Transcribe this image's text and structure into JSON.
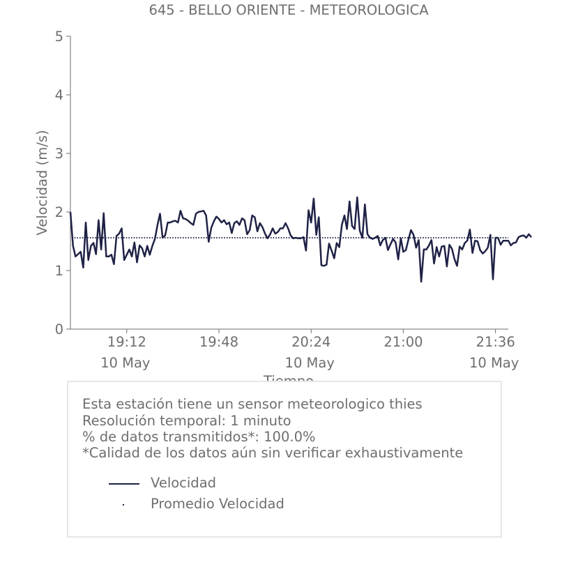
{
  "chart_data": {
    "type": "line",
    "title": "645 - BELLO ORIENTE - METEOROLOGICA",
    "xlabel": "Tiempo",
    "ylabel": "Velocidad (m/s)",
    "ylim": [
      0,
      5
    ],
    "yticks": [
      "0",
      "1",
      "2",
      "3",
      "4",
      "5"
    ],
    "xlim": [
      "18:50",
      "21:41"
    ],
    "xticks": [
      {
        "time": "19:12",
        "date": "10 May"
      },
      {
        "time": "19:48",
        "date": ""
      },
      {
        "time": "20:24",
        "date": "10 May"
      },
      {
        "time": "21:00",
        "date": ""
      },
      {
        "time": "21:36",
        "date": "10 May"
      }
    ],
    "grid": false,
    "colors": {
      "series": "#1f2246",
      "text": "#6e6e6e",
      "axis": "#6e6e6e",
      "box_border": "#e6e6e6"
    },
    "series": [
      {
        "name": "Velocidad",
        "start_time": "18:50",
        "interval_minutes": 1,
        "values": [
          2.0,
          1.42,
          1.24,
          1.28,
          1.32,
          1.05,
          1.82,
          1.18,
          1.42,
          1.47,
          1.28,
          1.86,
          1.36,
          1.98,
          1.24,
          1.24,
          1.27,
          1.11,
          1.59,
          1.63,
          1.72,
          1.18,
          1.27,
          1.36,
          1.24,
          1.48,
          1.14,
          1.43,
          1.38,
          1.24,
          1.42,
          1.27,
          1.42,
          1.54,
          1.78,
          1.97,
          1.56,
          1.6,
          1.82,
          1.82,
          1.84,
          1.85,
          1.82,
          2.02,
          1.89,
          1.88,
          1.85,
          1.81,
          1.78,
          1.97,
          2.0,
          2.01,
          2.02,
          1.94,
          1.49,
          1.73,
          1.84,
          1.92,
          1.88,
          1.82,
          1.86,
          1.79,
          1.82,
          1.64,
          1.81,
          1.84,
          1.78,
          1.89,
          1.86,
          1.62,
          1.69,
          1.94,
          1.91,
          1.67,
          1.81,
          1.74,
          1.63,
          1.55,
          1.62,
          1.72,
          1.63,
          1.66,
          1.72,
          1.72,
          1.81,
          1.72,
          1.6,
          1.55,
          1.56,
          1.55,
          1.55,
          1.57,
          1.34,
          2.03,
          1.82,
          2.23,
          1.61,
          1.91,
          1.09,
          1.08,
          1.1,
          1.46,
          1.34,
          1.21,
          1.47,
          1.4,
          1.78,
          1.94,
          1.71,
          2.18,
          1.76,
          1.71,
          2.25,
          1.68,
          1.56,
          2.13,
          1.62,
          1.56,
          1.54,
          1.56,
          1.59,
          1.43,
          1.52,
          1.56,
          1.35,
          1.45,
          1.54,
          1.48,
          1.19,
          1.55,
          1.32,
          1.35,
          1.53,
          1.69,
          1.61,
          1.39,
          1.52,
          0.81,
          1.36,
          1.36,
          1.43,
          1.52,
          1.12,
          1.4,
          1.24,
          1.41,
          1.42,
          1.07,
          1.44,
          1.37,
          1.19,
          1.08,
          1.41,
          1.36,
          1.47,
          1.51,
          1.7,
          1.3,
          1.51,
          1.5,
          1.35,
          1.29,
          1.33,
          1.39,
          1.61,
          0.85,
          1.56,
          1.56,
          1.44,
          1.51,
          1.51,
          1.51,
          1.43,
          1.47,
          1.48,
          1.57,
          1.59,
          1.6,
          1.56,
          1.62,
          1.57
        ]
      },
      {
        "name": "Promedio Velocidad",
        "style": "dotted",
        "values": [
          1.56
        ]
      }
    ]
  },
  "info": {
    "line1": "Esta estación tiene un sensor meteorologico thies",
    "line2": "Resolución temporal: 1 minuto",
    "line3": "% de datos transmitidos*: 100.0%",
    "line4": "*Calidad de los datos aún sin verificar exhaustivamente"
  },
  "legend": {
    "series1": "Velocidad",
    "series2": "Promedio Velocidad"
  }
}
